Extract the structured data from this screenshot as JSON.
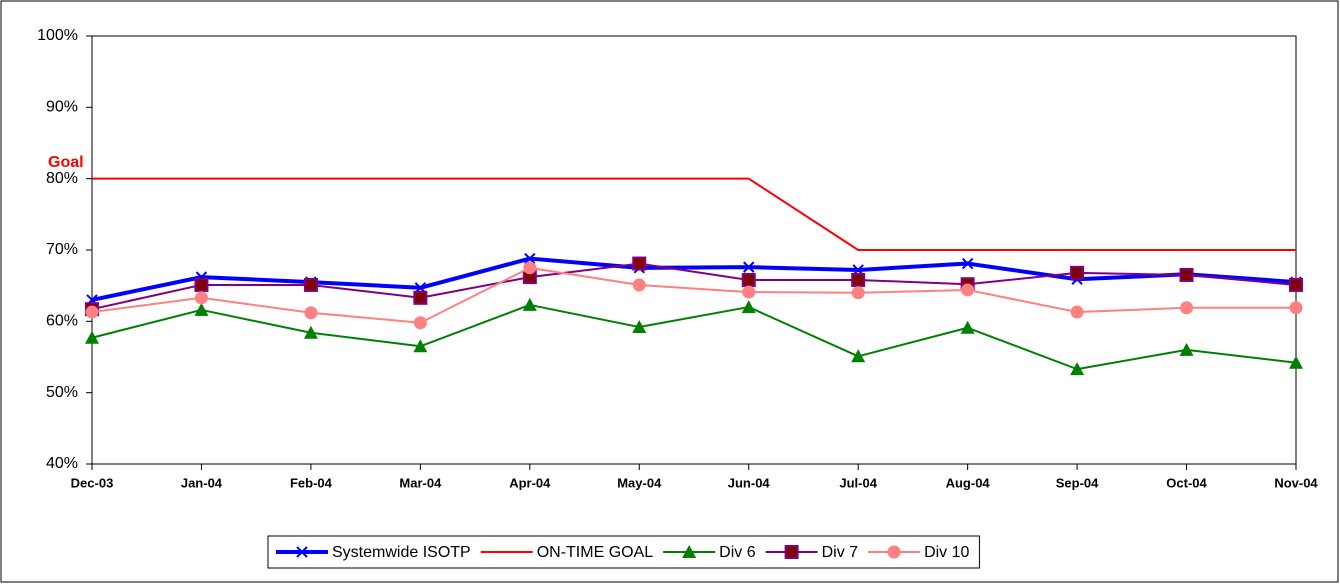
{
  "chart_data": {
    "type": "line",
    "annotation": "Goal",
    "categories": [
      "Dec-03",
      "Jan-04",
      "Feb-04",
      "Mar-04",
      "Apr-04",
      "May-04",
      "Jun-04",
      "Jul-04",
      "Aug-04",
      "Sep-04",
      "Oct-04",
      "Nov-04"
    ],
    "ylim": [
      40,
      100
    ],
    "yticks": [
      {
        "value": 40,
        "label": "40%"
      },
      {
        "value": 50,
        "label": "50%"
      },
      {
        "value": 60,
        "label": "60%"
      },
      {
        "value": 70,
        "label": "70%"
      },
      {
        "value": 80,
        "label": "80%"
      },
      {
        "value": 90,
        "label": "90%"
      },
      {
        "value": 100,
        "label": "100%"
      }
    ],
    "series": [
      {
        "name": "Systemwide ISOTP",
        "color": "#0000ff",
        "line_width": 4,
        "marker": "x",
        "values": [
          63.0,
          66.2,
          65.5,
          64.7,
          68.8,
          67.5,
          67.6,
          67.2,
          68.1,
          65.9,
          66.6,
          65.5
        ]
      },
      {
        "name": "ON-TIME GOAL",
        "color": "#ff0000",
        "line_width": 2,
        "marker": "none",
        "values": [
          80,
          80,
          80,
          80,
          80,
          80,
          80,
          70,
          70,
          70,
          70,
          70
        ]
      },
      {
        "name": "Div 6",
        "color": "#008000",
        "line_width": 2,
        "marker": "triangle",
        "values": [
          57.7,
          61.6,
          58.4,
          56.5,
          62.3,
          59.2,
          62.0,
          55.1,
          59.1,
          53.3,
          56.0,
          54.2
        ]
      },
      {
        "name": "Div 7",
        "color": "#800080",
        "marker_fill": "#800000",
        "line_width": 2,
        "marker": "square",
        "values": [
          61.7,
          65.1,
          65.1,
          63.3,
          66.2,
          68.1,
          65.8,
          65.8,
          65.2,
          66.8,
          66.5,
          65.1
        ]
      },
      {
        "name": "Div 10",
        "color": "#ff8080",
        "line_width": 2,
        "marker": "circle",
        "values": [
          61.3,
          63.3,
          61.2,
          59.8,
          67.5,
          65.1,
          64.1,
          64.0,
          64.4,
          61.3,
          61.9,
          61.9
        ]
      }
    ]
  }
}
